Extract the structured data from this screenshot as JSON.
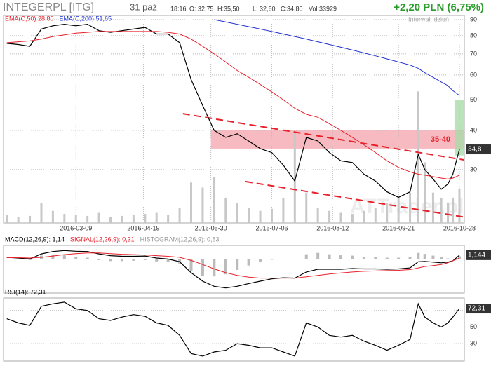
{
  "header": {
    "symbol": "INTEGERPL [ITG]",
    "date": "31 paź",
    "time": "18:16",
    "open": "O: 32,75",
    "high": "H:35,50",
    "low": "L: 32,60",
    "close": "C:34,80",
    "volume": "Vol:33929",
    "change": "+2,20 PLN (6,75%)",
    "interval": "Interwał: dzień",
    "watermark": "ATTrader.pl"
  },
  "chart_data": [
    {
      "type": "line",
      "log": true,
      "grid": true,
      "x": [
        "2016-01-27",
        "2016-02-03",
        "2016-02-10",
        "2016-02-17",
        "2016-02-24",
        "2016-03-02",
        "2016-03-09",
        "2016-03-16",
        "2016-03-23",
        "2016-03-30",
        "2016-04-06",
        "2016-04-13",
        "2016-04-20",
        "2016-04-27",
        "2016-05-04",
        "2016-05-11",
        "2016-05-18",
        "2016-05-25",
        "2016-06-01",
        "2016-06-08",
        "2016-06-15",
        "2016-06-22",
        "2016-06-29",
        "2016-07-06",
        "2016-07-13",
        "2016-07-20",
        "2016-07-27",
        "2016-08-03",
        "2016-08-10",
        "2016-08-17",
        "2016-08-24",
        "2016-08-31",
        "2016-09-07",
        "2016-09-14",
        "2016-09-21",
        "2016-09-28",
        "2016-10-03",
        "2016-10-07",
        "2016-10-12",
        "2016-10-17",
        "2016-10-21",
        "2016-10-24",
        "2016-10-28"
      ],
      "xlim": [
        "2016-01-25",
        "2016-10-31"
      ],
      "xticks": [
        "2016-03-09",
        "2016-04-19",
        "2016-05-30",
        "2016-07-06",
        "2016-08-12",
        "2016-09-21",
        "2016-10-28"
      ],
      "ylim": [
        20.3,
        92.8
      ],
      "yticks": [
        30,
        40,
        50,
        60,
        70,
        80,
        90
      ],
      "series": [
        {
          "color": "#000000",
          "values": [
            75.6,
            75,
            74,
            84,
            86,
            87,
            86,
            87,
            83,
            82,
            83,
            84,
            85,
            81,
            81,
            76,
            58,
            48,
            40,
            38,
            39,
            37,
            35,
            34,
            31,
            27.6,
            38,
            37,
            34,
            32,
            31.6,
            29,
            27.6,
            25.5,
            24.5,
            25.5,
            33.5,
            30,
            28,
            26,
            27,
            29,
            34.8
          ],
          "last_label": "34,8"
        },
        {
          "name": "EMA(C,50) 28,80",
          "color": "#e8202a",
          "values": [
            76,
            76.5,
            77,
            78,
            79.5,
            80.5,
            81.5,
            82,
            82.5,
            82.5,
            82.5,
            82.5,
            82.5,
            82.5,
            82,
            81,
            78,
            74,
            70,
            66,
            62,
            59,
            56,
            53,
            50,
            47,
            45,
            44,
            42,
            40,
            38,
            36,
            34,
            32,
            30.5,
            29.5,
            29,
            28.8,
            28.5,
            28.2,
            28,
            28.2,
            28.8
          ]
        },
        {
          "name": "EMA(C,200) 51,65",
          "color": "#2030d0",
          "values": [
            null,
            null,
            null,
            null,
            null,
            null,
            null,
            null,
            null,
            null,
            null,
            null,
            null,
            null,
            null,
            null,
            null,
            null,
            90,
            88.5,
            87,
            85.5,
            84,
            82.5,
            81,
            79.5,
            78,
            76.5,
            75,
            73.5,
            72,
            70.5,
            69,
            67.5,
            66,
            64.5,
            63,
            61,
            59,
            57,
            55.5,
            53.5,
            51.65
          ]
        }
      ],
      "volume": {
        "color": "#c8c8c8",
        "lim": [
          0,
          205000
        ],
        "values": [
          8000,
          6000,
          7000,
          20000,
          12000,
          9000,
          8000,
          7000,
          10000,
          6000,
          7000,
          8000,
          9000,
          10000,
          8000,
          15000,
          40000,
          35000,
          45000,
          25000,
          20000,
          15000,
          12000,
          14000,
          25000,
          90000,
          30000,
          15000,
          12000,
          10000,
          9000,
          12000,
          15000,
          20000,
          25000,
          30000,
          130000,
          60000,
          30000,
          25000,
          20000,
          25000,
          33929
        ]
      },
      "zones": [
        {
          "label": "35-40",
          "ylim": [
            35,
            40
          ],
          "xlim": [
            "2016-05-30",
            "2016-10-31"
          ],
          "color": "#f5a9b0"
        },
        {
          "ylim": [
            33.3,
            50
          ],
          "xlim": [
            "2016-10-25",
            "2016-10-31"
          ],
          "color": "#a9dca9"
        }
      ],
      "trendlines": [
        {
          "x": [
            "2016-05-13",
            "2016-10-31"
          ],
          "values": [
            45.2,
            32.2
          ],
          "color": "#e8202a"
        },
        {
          "x": [
            "2016-06-20",
            "2016-10-31"
          ],
          "values": [
            27.5,
            21.2
          ],
          "color": "#e8202a"
        }
      ]
    },
    {
      "type": "line",
      "ylim": [
        -10,
        4
      ],
      "series": [
        {
          "name": "MACD(12,26,9): 1,14",
          "color": "#000000",
          "values": [
            0.5,
            0.3,
            0,
            1.5,
            2.2,
            2.5,
            2.3,
            2.2,
            1.5,
            1,
            0.8,
            0.8,
            0.9,
            0.3,
            0,
            -0.8,
            -4,
            -6.5,
            -8,
            -8.5,
            -8,
            -7.2,
            -6.5,
            -5.8,
            -5.5,
            -5.6,
            -3.8,
            -3,
            -3,
            -3,
            -2.8,
            -2.9,
            -2.9,
            -3,
            -2.9,
            -2.6,
            -0.8,
            -0.7,
            -0.9,
            -1.1,
            -0.9,
            -0.5,
            1.144
          ],
          "last_label": "1,144"
        },
        {
          "name": "SIGNAL(12,26,9): 0,31",
          "color": "#e8202a",
          "values": [
            0.4,
            0.4,
            0.3,
            0.5,
            0.9,
            1.3,
            1.6,
            1.8,
            1.8,
            1.6,
            1.4,
            1.3,
            1.2,
            1,
            0.8,
            0.5,
            -0.4,
            -1.6,
            -2.9,
            -4,
            -4.8,
            -5.3,
            -5.6,
            -5.6,
            -5.6,
            -5.6,
            -5.2,
            -4.8,
            -4.4,
            -4.1,
            -3.8,
            -3.6,
            -3.5,
            -3.4,
            -3.3,
            -3.1,
            -2.6,
            -2.2,
            -1.9,
            -1.6,
            -1.1,
            -0.5,
            0.31
          ]
        }
      ],
      "histogram": {
        "name": "HISTOGRAM(12,26,9): 0,83",
        "color": "#bbbbbb",
        "values": [
          0.1,
          -0.1,
          -0.3,
          1,
          1.3,
          1.2,
          0.7,
          0.4,
          -0.3,
          -0.6,
          -0.6,
          -0.5,
          -0.3,
          -0.7,
          -0.8,
          -1.3,
          -3.6,
          -4.9,
          -5.1,
          -4.5,
          -3.2,
          -1.9,
          -0.9,
          -0.2,
          0.1,
          0,
          1.4,
          1.8,
          1.4,
          1.1,
          1,
          0.7,
          0.6,
          0.4,
          0.4,
          0.5,
          1.8,
          1.5,
          1,
          0.5,
          0.2,
          0,
          0.83
        ]
      }
    },
    {
      "type": "line",
      "ylim": [
        9,
        85
      ],
      "yticks": [
        30,
        50,
        70
      ],
      "grid": true,
      "series": [
        {
          "name": "RSI(14): 72,31",
          "color": "#000000",
          "values": [
            60,
            55,
            52,
            75,
            78,
            80,
            72,
            70,
            60,
            58,
            62,
            65,
            63,
            55,
            52,
            40,
            18,
            15,
            20,
            22,
            30,
            28,
            25,
            25,
            20,
            15,
            55,
            50,
            40,
            38,
            40,
            33,
            28,
            22,
            28,
            35,
            78,
            62,
            55,
            50,
            55,
            62,
            72.31
          ],
          "last_label": "72,31"
        }
      ]
    }
  ]
}
